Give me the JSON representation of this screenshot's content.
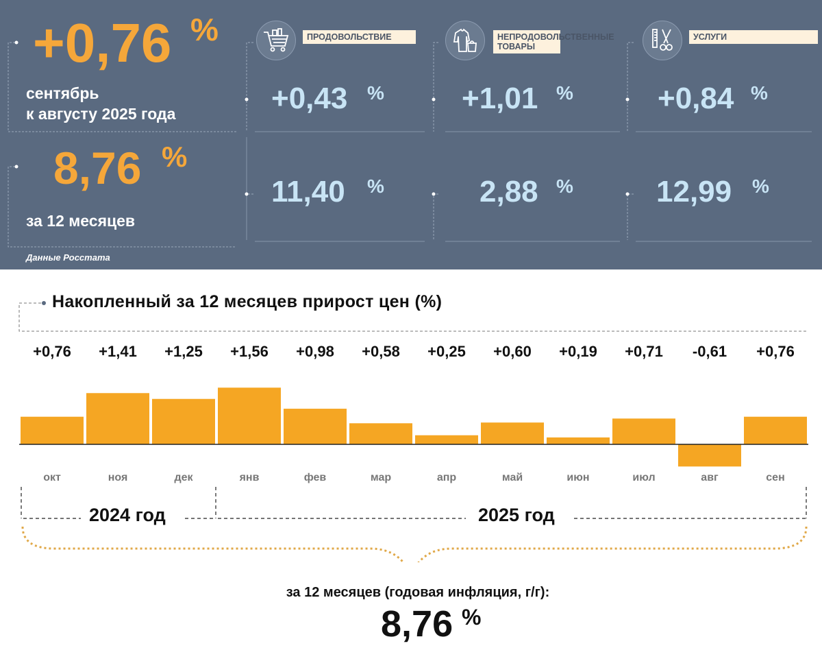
{
  "summary": {
    "monthly_value": "+0,76",
    "pct_sign": "%",
    "monthly_caption_line1": "сентябрь",
    "monthly_caption_line2": "к августу 2025 года",
    "annual_value": "8,76",
    "annual_caption": "за 12 месяцев",
    "source": "Данные Росстата"
  },
  "categories": [
    {
      "label": "ПРОДОВОЛЬСТВИЕ",
      "monthly": "+0,43",
      "annual": "11,40",
      "icon": "shopping-cart-icon"
    },
    {
      "label_line1": "НЕПРОДОВОЛЬСТВЕННЫЕ",
      "label_line2": "ТОВАРЫ",
      "monthly": "+1,01",
      "annual": "2,88",
      "icon": "clothing-icon"
    },
    {
      "label": "УСЛУГИ",
      "monthly": "+0,84",
      "annual": "12,99",
      "icon": "barber-tools-icon"
    }
  ],
  "chart_data": {
    "type": "bar",
    "title": "Накопленный за 12 месяцев прирост цен (%)",
    "categories": [
      "окт",
      "ноя",
      "дек",
      "янв",
      "фев",
      "мар",
      "апр",
      "май",
      "июн",
      "июл",
      "авг",
      "сен"
    ],
    "values": [
      0.76,
      1.41,
      1.25,
      1.56,
      0.98,
      0.58,
      0.25,
      0.6,
      0.19,
      0.71,
      -0.61,
      0.76
    ],
    "value_labels": [
      "+0,76",
      "+1,41",
      "+1,25",
      "+1,56",
      "+0,98",
      "+0,58",
      "+0,25",
      "+0,60",
      "+0,19",
      "+0,71",
      "-0,61",
      "+0,76"
    ],
    "groups": [
      {
        "label": "2024 год",
        "months": [
          "окт",
          "ноя",
          "дек"
        ]
      },
      {
        "label": "2025 год",
        "months": [
          "янв",
          "фев",
          "мар",
          "апр",
          "май",
          "июн",
          "июл",
          "авг",
          "сен"
        ]
      }
    ],
    "bar_color": "#f5a623",
    "ylim": [
      -0.61,
      1.56
    ]
  },
  "footer": {
    "caption": "за 12 месяцев (годовая инфляция, г/г):",
    "value": "8,76",
    "pct_sign": "%"
  },
  "colors": {
    "panel": "#5a6a80",
    "accent_orange": "#f5a73a",
    "light_blue": "#c8e4f5"
  }
}
